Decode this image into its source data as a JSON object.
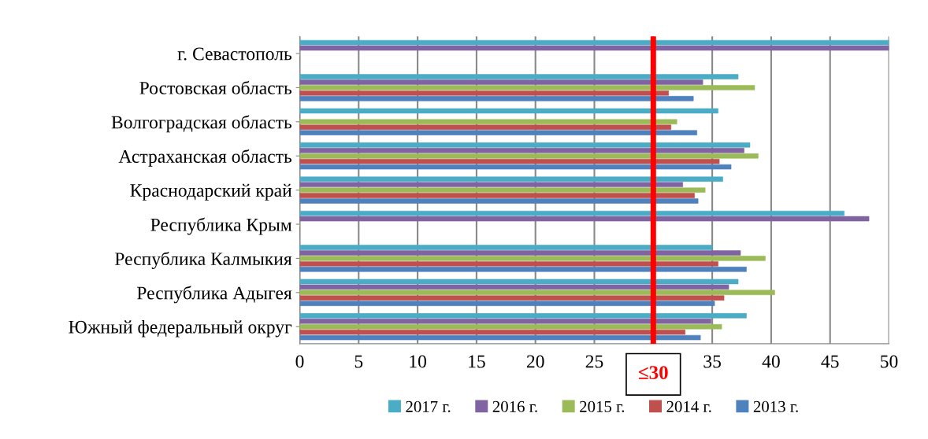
{
  "chart_data": {
    "type": "bar",
    "orientation": "horizontal",
    "categories": [
      "г. Севастополь",
      "Ростовская область",
      "Волгоградская область",
      "Астраханская область",
      "Краснодарский край",
      "Республика Крым",
      "Республика Калмыкия",
      "Республика Адыгея",
      "Южный федеральный округ"
    ],
    "series": [
      {
        "name": "2017 г.",
        "color": "#4bacc6",
        "values": [
          50.0,
          37.2,
          35.5,
          38.2,
          35.9,
          46.2,
          35.0,
          37.2,
          37.9
        ]
      },
      {
        "name": "2016 г.",
        "color": "#8064a2",
        "values": [
          50.0,
          34.2,
          null,
          37.7,
          32.5,
          48.3,
          37.4,
          36.4,
          34.9
        ]
      },
      {
        "name": "2015 г.",
        "color": "#9bbb59",
        "values": [
          0,
          38.6,
          32.0,
          38.9,
          34.4,
          0,
          39.5,
          40.3,
          35.8
        ]
      },
      {
        "name": "2014 г.",
        "color": "#c0504d",
        "values": [
          0,
          31.3,
          31.5,
          35.6,
          33.5,
          0,
          35.5,
          36.0,
          32.7
        ]
      },
      {
        "name": "2013 г.",
        "color": "#4f81bd",
        "values": [
          0,
          33.4,
          33.7,
          36.6,
          33.8,
          0,
          37.9,
          35.2,
          34.0
        ]
      }
    ],
    "xlim": [
      0,
      50
    ],
    "xticks": [
      0,
      5,
      10,
      15,
      20,
      25,
      {
        "value": 30,
        "label": null
      },
      35,
      40,
      45,
      50
    ],
    "ref_lines": [
      {
        "axis": "x",
        "value": 30,
        "label": "≤30",
        "color": "#ff0000"
      }
    ],
    "grid": "x",
    "legend": "bottom"
  }
}
